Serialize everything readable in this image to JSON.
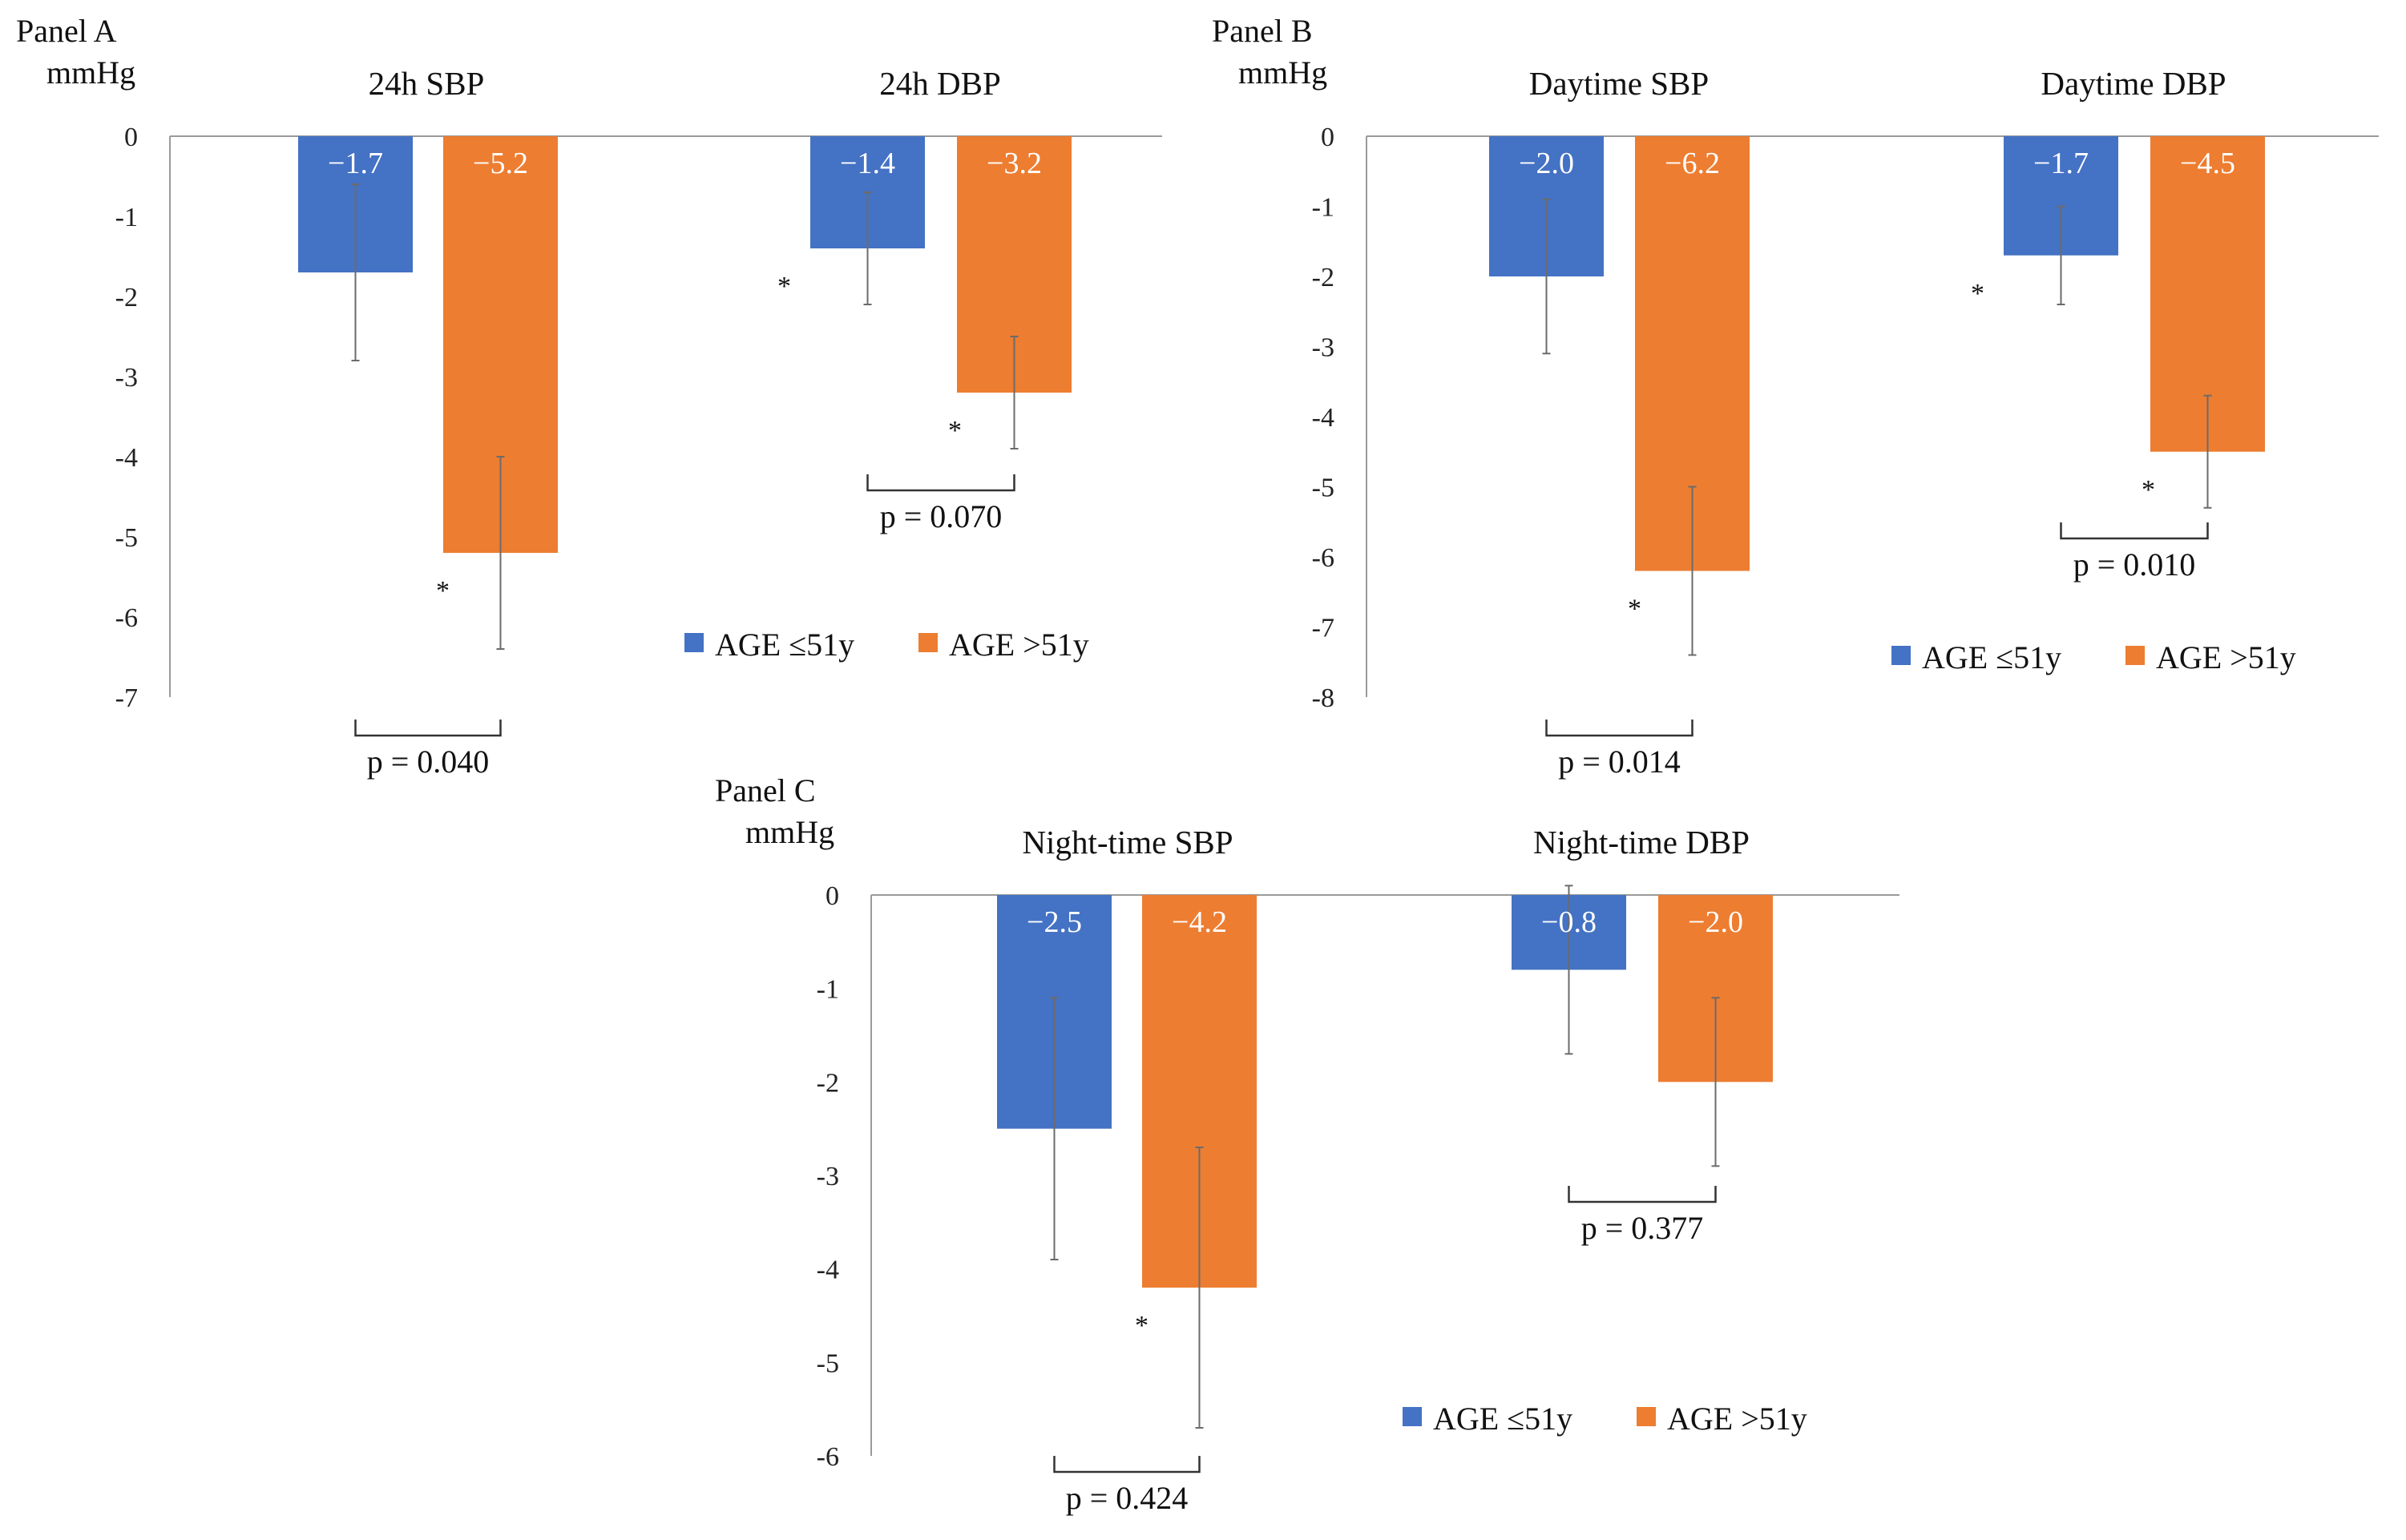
{
  "chart_data": [
    {
      "type": "bar",
      "panel": "Panel A",
      "ylabel": "mmHg",
      "ylim": [
        -7,
        0
      ],
      "ticks": [
        "0",
        "-1",
        "-2",
        "-3",
        "-4",
        "-5",
        "-6",
        "-7"
      ],
      "series": [
        {
          "name": "AGE ≤51y",
          "color": "#4472C4"
        },
        {
          "name": "AGE >51y",
          "color": "#ED7D31"
        }
      ],
      "groups": [
        {
          "title": "24h SBP",
          "bars": [
            {
              "value": -1.7,
              "label": "−1.7",
              "err_low": -2.8,
              "err_high": -0.6,
              "star": false
            },
            {
              "value": -5.2,
              "label": "−5.2",
              "err_low": -6.4,
              "err_high": -4.0,
              "star": true
            }
          ],
          "p": "p = 0.040"
        },
        {
          "title": "24h DBP",
          "bars": [
            {
              "value": -1.4,
              "label": "−1.4",
              "err_low": -2.1,
              "err_high": -0.7,
              "star": true
            },
            {
              "value": -3.2,
              "label": "−3.2",
              "err_low": -3.9,
              "err_high": -2.5,
              "star": true
            }
          ],
          "p": "p = 0.070"
        }
      ]
    },
    {
      "type": "bar",
      "panel": "Panel B",
      "ylabel": "mmHg",
      "ylim": [
        -8,
        0
      ],
      "ticks": [
        "0",
        "-1",
        "-2",
        "-3",
        "-4",
        "-5",
        "-6",
        "-7",
        "-8"
      ],
      "series": [
        {
          "name": "AGE ≤51y",
          "color": "#4472C4"
        },
        {
          "name": "AGE >51y",
          "color": "#ED7D31"
        }
      ],
      "groups": [
        {
          "title": "Daytime SBP",
          "bars": [
            {
              "value": -2.0,
              "label": "−2.0",
              "err_low": -3.1,
              "err_high": -0.9,
              "star": false
            },
            {
              "value": -6.2,
              "label": "−6.2",
              "err_low": -7.4,
              "err_high": -5.0,
              "star": true
            }
          ],
          "p": "p = 0.014"
        },
        {
          "title": "Daytime DBP",
          "bars": [
            {
              "value": -1.7,
              "label": "−1.7",
              "err_low": -2.4,
              "err_high": -1.0,
              "star": true
            },
            {
              "value": -4.5,
              "label": "−4.5",
              "err_low": -5.3,
              "err_high": -3.7,
              "star": true
            }
          ],
          "p": "p = 0.010"
        }
      ]
    },
    {
      "type": "bar",
      "panel": "Panel C",
      "ylabel": "mmHg",
      "ylim": [
        -6,
        0
      ],
      "ticks": [
        "0",
        "-1",
        "-2",
        "-3",
        "-4",
        "-5",
        "-6"
      ],
      "series": [
        {
          "name": "AGE ≤51y",
          "color": "#4472C4"
        },
        {
          "name": "AGE >51y",
          "color": "#ED7D31"
        }
      ],
      "groups": [
        {
          "title": "Night-time SBP",
          "bars": [
            {
              "value": -2.5,
              "label": "−2.5",
              "err_low": -3.9,
              "err_high": -1.1,
              "star": false
            },
            {
              "value": -4.2,
              "label": "−4.2",
              "err_low": -5.7,
              "err_high": -2.7,
              "star": true
            }
          ],
          "p": "p = 0.424"
        },
        {
          "title": "Night-time DBP",
          "bars": [
            {
              "value": -0.8,
              "label": "−0.8",
              "err_low": -1.7,
              "err_high": 0.1,
              "star": false
            },
            {
              "value": -2.0,
              "label": "−2.0",
              "err_low": -2.9,
              "err_high": -1.1,
              "star": false
            }
          ],
          "p": "p = 0.377"
        }
      ]
    }
  ]
}
